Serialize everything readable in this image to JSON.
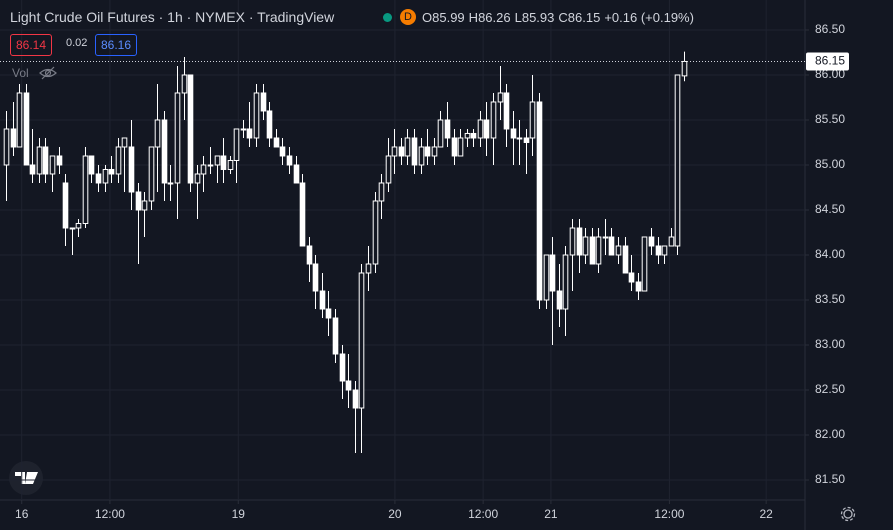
{
  "header": {
    "title": "Light Crude Oil Futures · 1h · NYMEX · TradingView",
    "badge": "D",
    "ohlc": [
      {
        "label": "O",
        "value": "85.99"
      },
      {
        "label": "H",
        "value": "86.26"
      },
      {
        "label": "L",
        "value": "85.93"
      },
      {
        "label": "C",
        "value": "86.15"
      }
    ],
    "change": "+0.16 (+0.19%)",
    "bid": "86.14",
    "spread": "0.02",
    "ask": "86.16",
    "volume_label": "Vol"
  },
  "chart_data": {
    "type": "candlestick",
    "up_color": "#131722",
    "down_color": "#ffffff",
    "wick_color": "#ffffff",
    "open": [
      85.0,
      85.4,
      85.2,
      85.8,
      85.0,
      84.9,
      85.2,
      84.9,
      85.1,
      84.8,
      84.3,
      84.3,
      84.35,
      85.1,
      84.9,
      84.8,
      84.95,
      84.9,
      85.2,
      85.2,
      84.7,
      84.5,
      84.6,
      85.2,
      85.5,
      84.8,
      84.8,
      85.8,
      86.0,
      84.8,
      84.9,
      85.0,
      85.0,
      85.1,
      84.95,
      85.05,
      85.4,
      85.4,
      85.3,
      85.8,
      85.6,
      85.3,
      85.2,
      85.1,
      85.0,
      84.8,
      84.1,
      83.9,
      83.6,
      83.4,
      83.3,
      82.9,
      82.6,
      82.5,
      82.3,
      83.8,
      83.9,
      84.6,
      84.8,
      85.1,
      85.2,
      85.1,
      85.3,
      85.0,
      85.2,
      85.1,
      85.2,
      85.5,
      85.3,
      85.1,
      85.3,
      85.35,
      85.3,
      85.5,
      85.3,
      85.7,
      85.8,
      85.4,
      85.3,
      85.3,
      85.3,
      85.7,
      83.5,
      84.0,
      83.6,
      83.4,
      84.0,
      84.3,
      84.0,
      84.2,
      83.9,
      84.2,
      84.2,
      84.0,
      84.1,
      83.8,
      83.7,
      83.6,
      84.2,
      84.1,
      84.0,
      84.1,
      84.1,
      85.99
    ],
    "high": [
      85.6,
      85.7,
      85.9,
      85.9,
      85.4,
      85.3,
      85.3,
      85.1,
      85.2,
      84.9,
      84.3,
      84.4,
      85.2,
      85.1,
      85.0,
      85.0,
      85.1,
      85.3,
      85.3,
      85.5,
      84.8,
      84.7,
      85.2,
      85.9,
      85.6,
      85.0,
      86.1,
      86.2,
      86.0,
      85.0,
      85.1,
      85.2,
      85.1,
      85.3,
      85.1,
      85.4,
      85.5,
      85.7,
      85.9,
      85.9,
      85.7,
      85.4,
      85.3,
      85.2,
      85.1,
      84.9,
      84.2,
      84.0,
      83.8,
      83.6,
      83.4,
      83.0,
      82.9,
      82.6,
      83.9,
      84.1,
      84.7,
      84.9,
      85.3,
      85.4,
      85.3,
      85.4,
      85.4,
      85.3,
      85.4,
      85.3,
      85.6,
      85.7,
      85.4,
      85.4,
      85.4,
      85.4,
      85.6,
      85.7,
      85.8,
      86.1,
      85.9,
      85.6,
      85.5,
      85.4,
      86.0,
      85.8,
      84.0,
      84.2,
      83.9,
      84.1,
      84.4,
      84.4,
      84.3,
      84.3,
      84.3,
      84.4,
      84.3,
      84.2,
      84.2,
      84.0,
      83.8,
      84.2,
      84.3,
      84.2,
      84.1,
      84.3,
      86.0,
      86.26
    ],
    "low": [
      84.6,
      85.1,
      85.2,
      85.0,
      84.8,
      84.8,
      84.8,
      84.7,
      84.9,
      84.1,
      84.0,
      84.2,
      84.3,
      84.8,
      84.7,
      84.7,
      84.8,
      84.8,
      84.7,
      84.5,
      83.9,
      84.2,
      84.5,
      84.7,
      84.6,
      84.6,
      84.4,
      85.5,
      84.7,
      84.4,
      84.7,
      84.9,
      84.8,
      84.8,
      84.9,
      84.8,
      85.3,
      85.2,
      85.2,
      85.5,
      85.2,
      85.2,
      85.0,
      84.9,
      84.8,
      84.1,
      83.7,
      83.4,
      83.3,
      83.1,
      82.8,
      82.4,
      82.3,
      81.8,
      81.8,
      83.6,
      83.8,
      84.4,
      84.7,
      84.9,
      85.0,
      85.0,
      84.9,
      84.9,
      85.0,
      85.0,
      85.2,
      85.2,
      85.0,
      85.1,
      85.2,
      85.2,
      85.2,
      85.1,
      85.0,
      85.5,
      85.2,
      85.0,
      85.0,
      84.9,
      85.1,
      83.4,
      83.4,
      83.0,
      83.2,
      83.1,
      83.6,
      83.8,
      83.9,
      83.9,
      83.8,
      84.0,
      84.0,
      83.9,
      83.8,
      83.6,
      83.5,
      83.6,
      84.0,
      83.9,
      83.9,
      84.1,
      84.0,
      85.93
    ],
    "close": [
      85.4,
      85.2,
      85.8,
      85.0,
      84.9,
      85.2,
      84.9,
      85.1,
      85.0,
      84.3,
      84.3,
      84.35,
      85.1,
      84.9,
      84.8,
      84.95,
      84.9,
      85.2,
      85.3,
      84.7,
      84.5,
      84.6,
      85.2,
      85.5,
      84.8,
      84.8,
      85.8,
      86.0,
      84.8,
      84.9,
      85.0,
      85.0,
      85.1,
      84.95,
      85.05,
      85.4,
      85.4,
      85.3,
      85.8,
      85.6,
      85.3,
      85.2,
      85.1,
      85.0,
      84.8,
      84.1,
      83.9,
      83.6,
      83.4,
      83.3,
      82.9,
      82.6,
      82.5,
      82.3,
      83.8,
      83.9,
      84.6,
      84.8,
      85.1,
      85.2,
      85.1,
      85.3,
      85.0,
      85.2,
      85.1,
      85.2,
      85.5,
      85.3,
      85.1,
      85.3,
      85.35,
      85.3,
      85.5,
      85.3,
      85.7,
      85.8,
      85.4,
      85.3,
      85.3,
      85.25,
      85.7,
      83.5,
      84.0,
      83.6,
      83.4,
      84.0,
      84.3,
      84.0,
      84.2,
      83.9,
      84.2,
      84.2,
      84.0,
      84.1,
      83.8,
      83.7,
      83.6,
      84.2,
      84.1,
      84.0,
      84.1,
      84.2,
      86.0,
      86.15
    ],
    "xlim": [
      -0.9,
      121.4
    ],
    "xticks": [
      {
        "value": 2.4,
        "label": "16"
      },
      {
        "value": 15.8,
        "label": "12:00"
      },
      {
        "value": 35.3,
        "label": "19"
      },
      {
        "value": 59.1,
        "label": "20"
      },
      {
        "value": 72.5,
        "label": "12:00"
      },
      {
        "value": 82.8,
        "label": "21"
      },
      {
        "value": 100.8,
        "label": "12:00"
      },
      {
        "value": 115.5,
        "label": "22"
      }
    ],
    "ylim": [
      81.278,
      86.833
    ],
    "yticks": [
      {
        "value": 81.5,
        "label": "81.50"
      },
      {
        "value": 82,
        "label": "82.00"
      },
      {
        "value": 82.5,
        "label": "82.50"
      },
      {
        "value": 83,
        "label": "83.00"
      },
      {
        "value": 83.5,
        "label": "83.50"
      },
      {
        "value": 84,
        "label": "84.00"
      },
      {
        "value": 84.5,
        "label": "84.50"
      },
      {
        "value": 85,
        "label": "85.00"
      },
      {
        "value": 85.5,
        "label": "85.50"
      },
      {
        "value": 86,
        "label": "86.00"
      },
      {
        "value": 86.5,
        "label": "86.50"
      }
    ],
    "grid": true
  }
}
